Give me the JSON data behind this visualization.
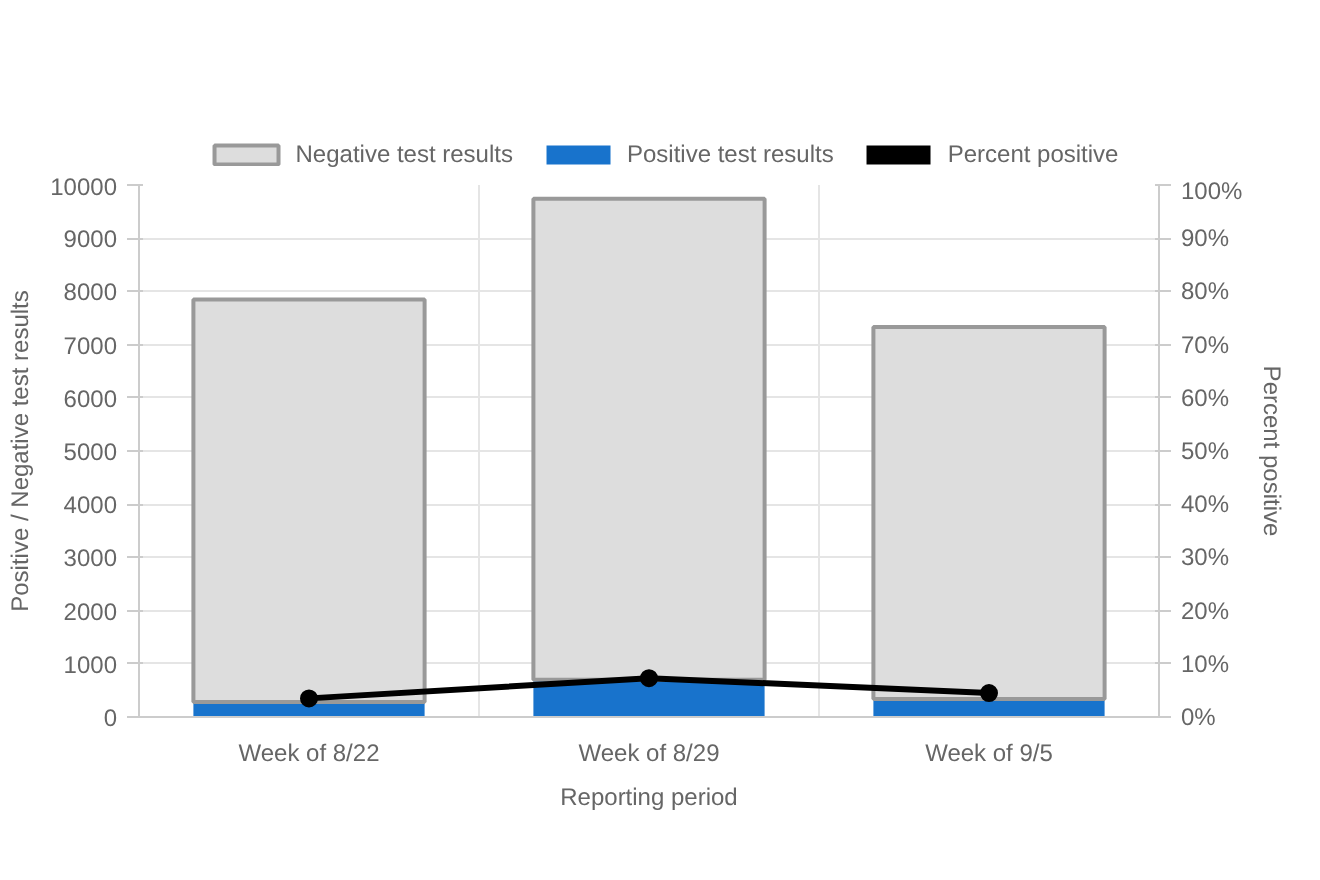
{
  "chart_data": {
    "type": "bar",
    "stacked": true,
    "categories": [
      "Week of 8/22",
      "Week of 8/29",
      "Week of 9/5"
    ],
    "xlabel": "Reporting period",
    "ylabel": "Positive / Negative test results",
    "y2label": "Percent positive",
    "series": [
      {
        "name": "Positive test results",
        "color": "#1873cc",
        "values": [
          280,
          700,
          340
        ]
      },
      {
        "name": "Negative test results",
        "color": "#dddddd",
        "values": [
          7570,
          9040,
          6990
        ]
      },
      {
        "name": "Percent positive",
        "type": "line",
        "axis": "y2",
        "color": "#000000",
        "marker": "circle",
        "values": [
          3.5,
          7.3,
          4.5
        ]
      }
    ],
    "ylim": [
      0,
      10000
    ],
    "yticks": [
      0,
      1000,
      2000,
      3000,
      4000,
      5000,
      6000,
      7000,
      8000,
      9000,
      10000
    ],
    "y2lim": [
      0,
      100
    ],
    "y2ticks": [
      {
        "value": 0,
        "label": "0%"
      },
      {
        "value": 10,
        "label": "10%"
      },
      {
        "value": 20,
        "label": "20%"
      },
      {
        "value": 30,
        "label": "30%"
      },
      {
        "value": 40,
        "label": "40%"
      },
      {
        "value": 50,
        "label": "50%"
      },
      {
        "value": 60,
        "label": "60%"
      },
      {
        "value": 70,
        "label": "70%"
      },
      {
        "value": 80,
        "label": "80%"
      },
      {
        "value": 90,
        "label": "90%"
      },
      {
        "value": 100,
        "label": "100%"
      }
    ],
    "grid": true,
    "legend": "top"
  }
}
